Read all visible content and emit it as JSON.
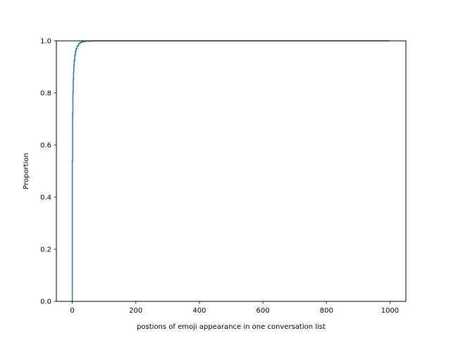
{
  "chart_data": {
    "type": "line",
    "title": "",
    "xlabel": "postions of emoji appearance in one conversation list",
    "ylabel": "Proportion",
    "xlim": [
      -50,
      1050
    ],
    "ylim": [
      0,
      1
    ],
    "xticks": [
      0,
      200,
      400,
      600,
      800,
      1000
    ],
    "xtick_labels": [
      "0",
      "200",
      "400",
      "600",
      "800",
      "1000"
    ],
    "yticks": [
      0.0,
      0.2,
      0.4,
      0.6,
      0.8,
      1.0
    ],
    "ytick_labels": [
      "0.0",
      "0.2",
      "0.4",
      "0.6",
      "0.8",
      "1.0"
    ],
    "grid": false,
    "line_color": "#1f77b4",
    "series": [
      {
        "x": [
          0,
          0,
          1,
          1,
          2,
          2,
          3,
          3,
          4,
          4,
          5,
          5,
          6,
          6,
          8,
          8,
          10,
          10,
          12,
          12,
          15,
          15,
          20,
          20,
          25,
          25,
          30,
          30,
          40,
          40,
          60,
          60,
          1000
        ],
        "y": [
          0.0,
          0.54,
          0.54,
          0.72,
          0.72,
          0.8,
          0.8,
          0.85,
          0.85,
          0.88,
          0.88,
          0.905,
          0.905,
          0.925,
          0.925,
          0.945,
          0.945,
          0.96,
          0.96,
          0.97,
          0.97,
          0.98,
          0.98,
          0.99,
          0.99,
          0.994,
          0.994,
          0.997,
          0.997,
          0.999,
          0.999,
          1.0,
          1.0
        ]
      }
    ]
  }
}
